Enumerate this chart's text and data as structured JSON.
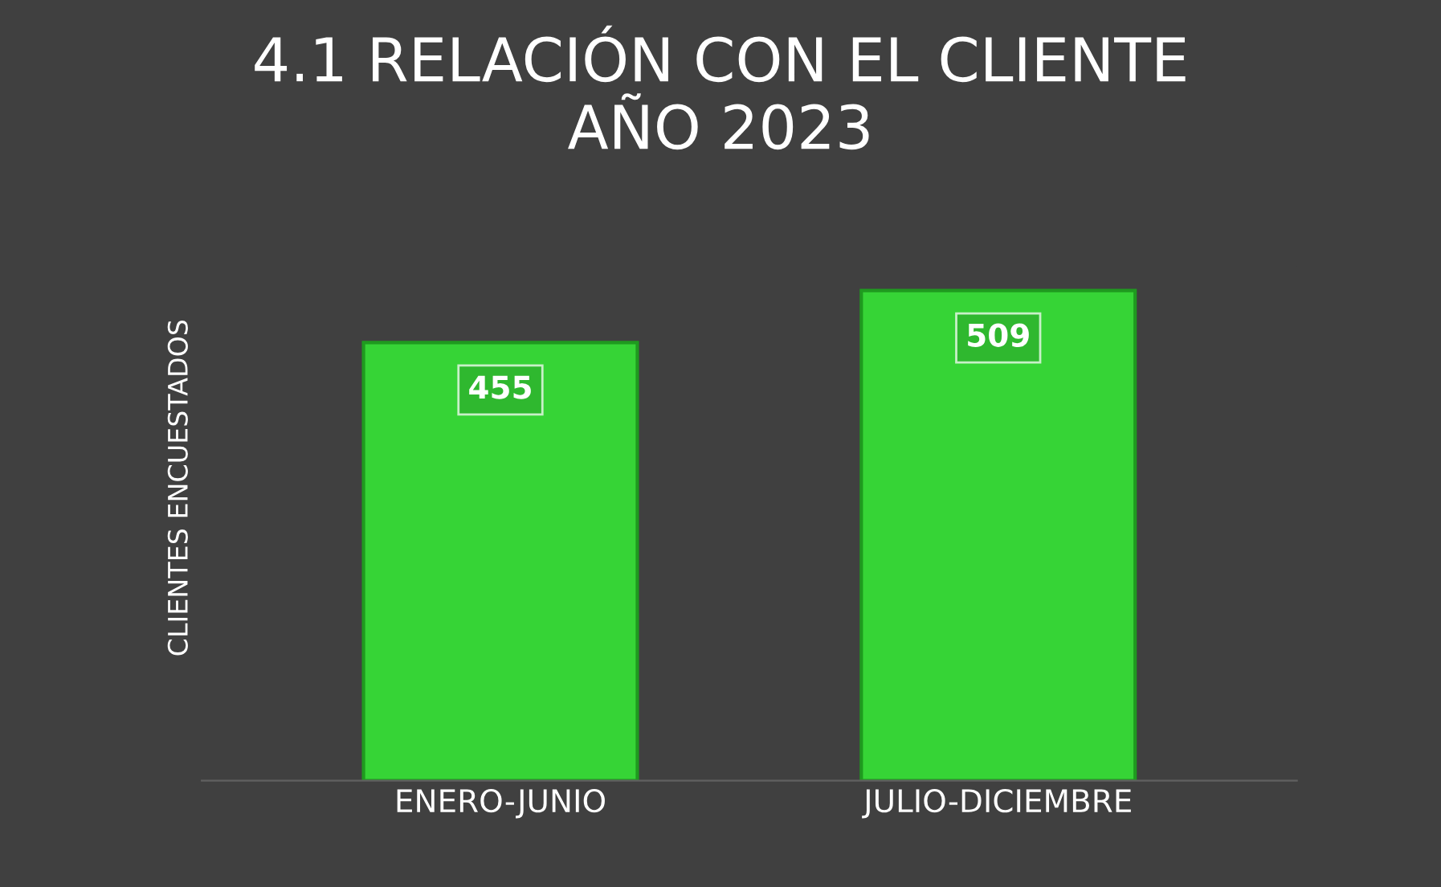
{
  "chart_data": {
    "type": "bar",
    "title": "4.1 RELACIÓN CON EL CLIENTE\nAÑO 2023",
    "ylabel": "CLIENTES ENCUESTADOS",
    "categories": [
      "ENERO-JUNIO",
      "JULIO-DICIEMBRE"
    ],
    "values": [
      455,
      509
    ],
    "color": "#36d436",
    "data_labels": true,
    "tick_labels": "x",
    "grid": false,
    "legend": false
  }
}
